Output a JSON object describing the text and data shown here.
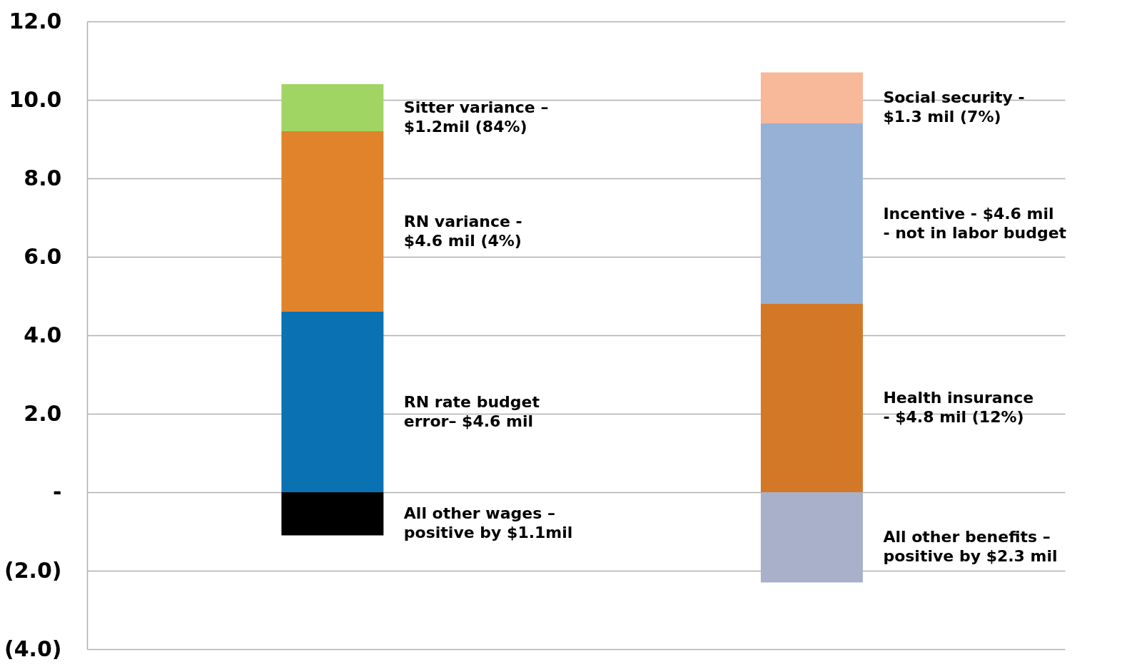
{
  "chart_data": {
    "type": "bar",
    "stacked": true,
    "categories": [
      null,
      null
    ],
    "series": [
      {
        "colors": [
          "#000000",
          "#a8b1c9"
        ],
        "values": [
          -1.1,
          -2.3
        ]
      },
      {
        "colors": [
          "#0a71b3",
          "#d27826"
        ],
        "values": [
          4.6,
          4.8
        ]
      },
      {
        "colors": [
          "#e0832a",
          "#97b1d6"
        ],
        "values": [
          4.6,
          4.6
        ]
      },
      {
        "colors": [
          "#a1d563",
          "#f8b89a"
        ],
        "values": [
          1.2,
          1.3
        ]
      }
    ],
    "annotations": [
      "Sitter variance –\n$1.2mil (84%)",
      "RN variance -\n$4.6 mil (4%)",
      "RN rate budget\nerror– $4.6 mil",
      "All other wages –\npositive by $1.1mil",
      "Social security -\n$1.3 mil (7%)",
      "Incentive - $4.6 mil\n- not in labor budget",
      "Health insurance\n- $4.8 mil (12%)",
      "All other benefits –\npositive by $2.3 mil"
    ],
    "ylim": [
      -4,
      12
    ],
    "yticks": [
      {
        "value": -4,
        "label": "(4.0)"
      },
      {
        "value": -2,
        "label": "(2.0)"
      },
      {
        "value": 0,
        "label": "-"
      },
      {
        "value": 2,
        "label": "2.0"
      },
      {
        "value": 4,
        "label": "4.0"
      },
      {
        "value": 6,
        "label": "6.0"
      },
      {
        "value": 8,
        "label": "8.0"
      },
      {
        "value": 10,
        "label": "10.0"
      },
      {
        "value": 12,
        "label": "12.0"
      }
    ],
    "grid": "y",
    "tick_labels": "y"
  }
}
